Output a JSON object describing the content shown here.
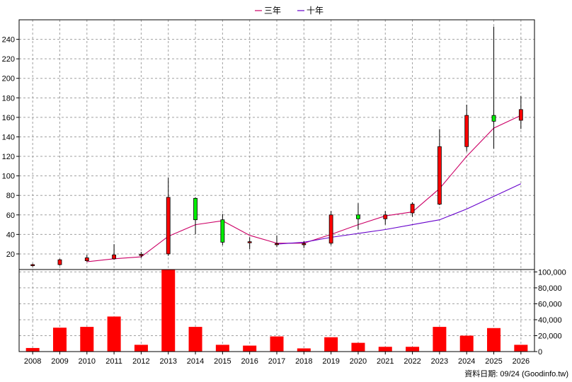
{
  "legend": [
    {
      "label": "三年",
      "color": "#cc0066"
    },
    {
      "label": "十年",
      "color": "#6600cc"
    }
  ],
  "footer": "資料日期: 09/24 (Goodinfo.tw)",
  "colors": {
    "up": "#ff0000",
    "down": "#00ee00",
    "volume": "#ff0000",
    "grid": "#a0a0a0"
  },
  "chart_data": {
    "type": "candlestick+bar",
    "years": [
      "2008",
      "2009",
      "2010",
      "2011",
      "2012",
      "2013",
      "2014",
      "2015",
      "2016",
      "2017",
      "2018",
      "2019",
      "2020",
      "2021",
      "2022",
      "2023",
      "2024",
      "2025",
      "2026"
    ],
    "price_axis": {
      "ylim": [
        4,
        260
      ],
      "ticks": [
        20,
        40,
        60,
        80,
        100,
        120,
        140,
        160,
        180,
        200,
        220,
        240
      ]
    },
    "volume_axis": {
      "ylim": [
        0,
        103000
      ],
      "ticks": [
        0,
        20000,
        40000,
        60000,
        80000,
        100000
      ],
      "tick_labels": [
        "0",
        "20,000",
        "40,000",
        "60,000",
        "80,000",
        "100,000"
      ]
    },
    "candles": [
      {
        "open": 8.0,
        "close": 9.0,
        "high": 10.0,
        "low": 7.0
      },
      {
        "open": 9.0,
        "close": 14.0,
        "high": 15.0,
        "low": 8.0
      },
      {
        "open": 13.0,
        "close": 16.0,
        "high": 19.0,
        "low": 12.0
      },
      {
        "open": 15.0,
        "close": 19.0,
        "high": 30.0,
        "low": 14.0
      },
      {
        "open": 18.5,
        "close": 19.5,
        "high": 22.0,
        "low": 16.0
      },
      {
        "open": 20.0,
        "close": 78.0,
        "high": 98.0,
        "low": 18.0
      },
      {
        "open": 77.0,
        "close": 55.0,
        "high": 78.0,
        "low": 40.0
      },
      {
        "open": 55.0,
        "close": 32.0,
        "high": 61.0,
        "low": 29.0
      },
      {
        "open": 31.5,
        "close": 32.5,
        "high": 37.0,
        "low": 25.0
      },
      {
        "open": 29.5,
        "close": 30.5,
        "high": 39.0,
        "low": 27.0
      },
      {
        "open": 30.0,
        "close": 30.5,
        "high": 33.0,
        "low": 26.0
      },
      {
        "open": 31.0,
        "close": 60.0,
        "high": 64.0,
        "low": 29.0
      },
      {
        "open": 60.0,
        "close": 56.0,
        "high": 72.0,
        "low": 45.0
      },
      {
        "open": 56.0,
        "close": 60.0,
        "high": 64.0,
        "low": 50.0
      },
      {
        "open": 62.0,
        "close": 71.0,
        "high": 73.0,
        "low": 58.0
      },
      {
        "open": 71.0,
        "close": 130.0,
        "high": 148.0,
        "low": 70.0
      },
      {
        "open": 130.0,
        "close": 162.0,
        "high": 173.0,
        "low": 125.0
      },
      {
        "open": 162.0,
        "close": 156.0,
        "high": 253.0,
        "low": 128.0
      },
      {
        "open": 157.0,
        "close": 168.0,
        "high": 182.0,
        "low": 148.0
      }
    ],
    "ma3": [
      null,
      null,
      12.0,
      15.0,
      17.0,
      38.0,
      50.0,
      54.0,
      39.0,
      31.0,
      31.0,
      40.0,
      50.0,
      59.0,
      63.0,
      87.0,
      120.0,
      149.0,
      162.0
    ],
    "ma10": [
      null,
      null,
      null,
      null,
      null,
      null,
      null,
      null,
      null,
      30.0,
      32.0,
      37.0,
      41.0,
      45.0,
      50.0,
      55.0,
      66.0,
      79.0,
      92.0
    ],
    "volume": [
      4500,
      30000,
      31000,
      44000,
      8500,
      103000,
      31000,
      8500,
      7500,
      19000,
      4000,
      18000,
      11000,
      6000,
      6000,
      31000,
      20000,
      29500,
      8500
    ]
  }
}
